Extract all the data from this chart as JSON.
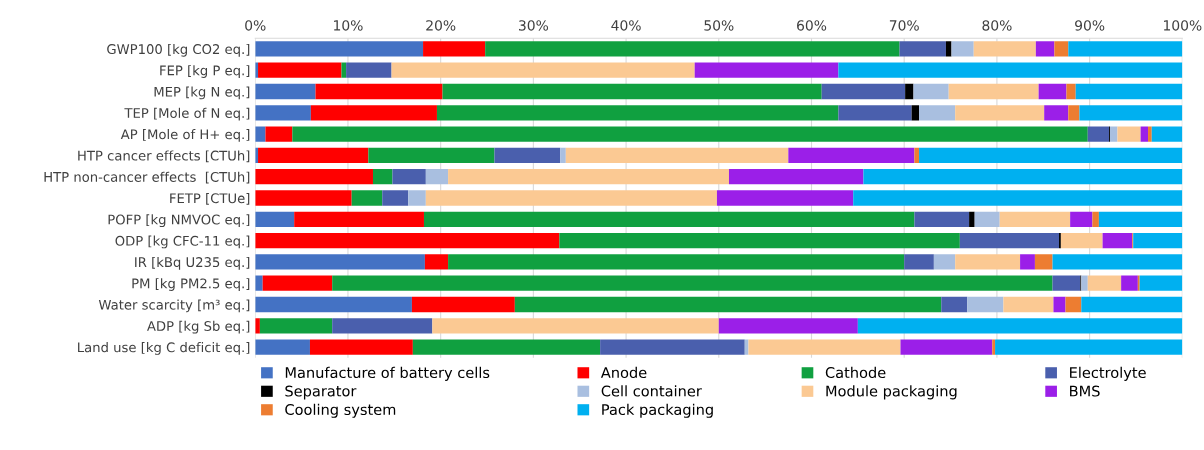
{
  "chart_data": {
    "type": "bar",
    "orientation": "horizontal",
    "stacked": true,
    "categories": [
      "GWP100 [kg CO2 eq.]",
      "FEP [kg P eq.]",
      "MEP [kg N eq.]",
      "TEP [Mole of N eq.]",
      "AP [Mole of H+ eq.]",
      "HTP cancer effects [CTUh]",
      "HTP non-cancer effects  [CTUh]",
      "FETP [CTUe]",
      "POFP [kg NMVOC eq.]",
      "ODP [kg CFC-11 eq.]",
      "IR [kBq U235 eq.]",
      "PM [kg PM2.5 eq.]",
      "Water scarcity [m³ eq.]",
      "ADP [kg Sb eq.]",
      "Land use [kg C deficit eq.]"
    ],
    "series": [
      {
        "name": "Manufacture of battery cells",
        "color": "#4472c4",
        "values": [
          18.1,
          0.3,
          6.5,
          6.0,
          1.1,
          0.3,
          0,
          0,
          4.2,
          0,
          18.3,
          0.8,
          16.9,
          0,
          5.9
        ]
      },
      {
        "name": "Anode",
        "color": "#ff0000",
        "values": [
          6.7,
          9.0,
          13.7,
          13.6,
          2.9,
          11.9,
          12.7,
          10.4,
          14.0,
          32.8,
          2.5,
          7.5,
          11.1,
          0.5,
          11.1
        ]
      },
      {
        "name": "Cathode",
        "color": "#10a040",
        "values": [
          44.7,
          0.5,
          40.9,
          43.3,
          85.8,
          13.6,
          2.1,
          3.3,
          52.9,
          43.2,
          49.2,
          77.7,
          46.0,
          7.8,
          20.2
        ]
      },
      {
        "name": "Electrolyte",
        "color": "#4a5fad",
        "values": [
          5.0,
          4.9,
          9.0,
          7.9,
          2.3,
          7.1,
          3.6,
          2.8,
          5.9,
          10.7,
          3.2,
          3.0,
          2.8,
          10.8,
          15.6
        ]
      },
      {
        "name": "Separator",
        "color": "#000000",
        "values": [
          0.6,
          0,
          0.9,
          0.8,
          0.1,
          0,
          0,
          0,
          0.6,
          0.2,
          0,
          0.1,
          0,
          0,
          0
        ]
      },
      {
        "name": "Cell container",
        "color": "#a9bfe0",
        "values": [
          2.4,
          0,
          3.8,
          3.9,
          0.8,
          0.6,
          2.4,
          1.9,
          2.7,
          0,
          2.3,
          0.7,
          3.9,
          0,
          0.4
        ]
      },
      {
        "name": "Module packaging",
        "color": "#fbc993",
        "values": [
          6.7,
          32.7,
          9.7,
          9.6,
          2.5,
          24.0,
          30.3,
          31.4,
          7.6,
          4.5,
          7.0,
          3.6,
          5.4,
          30.9,
          16.4
        ]
      },
      {
        "name": "BMS",
        "color": "#9b1fe8",
        "values": [
          2.0,
          15.5,
          3.0,
          2.6,
          0.8,
          13.6,
          14.5,
          14.7,
          2.4,
          3.2,
          1.6,
          1.8,
          1.3,
          15.0,
          9.9
        ]
      },
      {
        "name": "Cooling system",
        "color": "#ed7d31",
        "values": [
          1.5,
          0,
          1.0,
          1.2,
          0.4,
          0.5,
          0,
          0,
          0.7,
          0.1,
          1.9,
          0.2,
          1.7,
          0,
          0.3
        ]
      },
      {
        "name": "Pack packaging",
        "color": "#00b0f0",
        "values": [
          12.3,
          37.1,
          11.5,
          11.1,
          3.3,
          28.4,
          34.4,
          35.5,
          9.0,
          5.3,
          14.0,
          4.6,
          10.9,
          35.0,
          20.2
        ]
      }
    ],
    "xlim": [
      0,
      100
    ],
    "xticks": [
      {
        "value": 0,
        "label": "0%"
      },
      {
        "value": 10,
        "label": "10%"
      },
      {
        "value": 20,
        "label": "20%"
      },
      {
        "value": 30,
        "label": "30%"
      },
      {
        "value": 40,
        "label": "40%"
      },
      {
        "value": 50,
        "label": "50%"
      },
      {
        "value": 60,
        "label": "60%"
      },
      {
        "value": 70,
        "label": "70%"
      },
      {
        "value": 80,
        "label": "80%"
      },
      {
        "value": 90,
        "label": "90%"
      },
      {
        "value": 100,
        "label": "100%"
      }
    ],
    "grid": "x",
    "legend": "bottom"
  }
}
